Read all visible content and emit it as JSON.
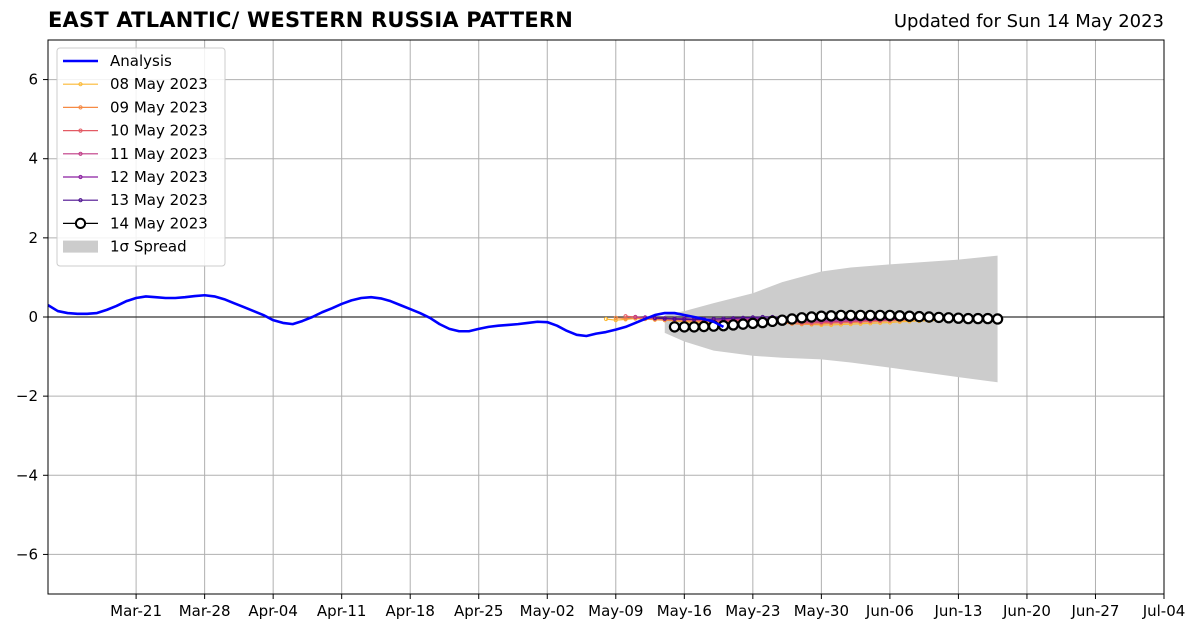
{
  "chart_data": {
    "type": "line",
    "title": "EAST ATLANTIC/ WESTERN RUSSIA PATTERN",
    "subtitle": "Updated for Sun 14 May 2023",
    "xlabel": "",
    "ylabel": "",
    "xlim": [
      "2023-03-12",
      "2023-07-04"
    ],
    "ylim": [
      -7,
      7
    ],
    "grid": true,
    "legend_position": "top-left",
    "x_ticks": [
      "2023-03-21",
      "2023-03-28",
      "2023-04-04",
      "2023-04-11",
      "2023-04-18",
      "2023-04-25",
      "2023-05-02",
      "2023-05-09",
      "2023-05-16",
      "2023-05-23",
      "2023-05-30",
      "2023-06-06",
      "2023-06-13",
      "2023-06-20",
      "2023-06-27",
      "2023-07-04"
    ],
    "x_tick_labels": [
      "Mar-21",
      "Mar-28",
      "Apr-04",
      "Apr-11",
      "Apr-18",
      "Apr-25",
      "May-02",
      "May-09",
      "May-16",
      "May-23",
      "May-30",
      "Jun-06",
      "Jun-13",
      "Jun-20",
      "Jun-27",
      "Jul-04"
    ],
    "y_ticks": [
      -6,
      -4,
      -2,
      0,
      2,
      4,
      6
    ],
    "y_tick_labels": [
      "−6",
      "−4",
      "−2",
      "0",
      "2",
      "4",
      "6"
    ],
    "analysis": {
      "name": "Analysis",
      "color": "#0000ff",
      "start": "2023-03-12",
      "values": [
        0.3,
        0.15,
        0.1,
        0.08,
        0.08,
        0.1,
        0.18,
        0.28,
        0.4,
        0.48,
        0.52,
        0.5,
        0.48,
        0.48,
        0.5,
        0.53,
        0.55,
        0.52,
        0.45,
        0.35,
        0.25,
        0.15,
        0.05,
        -0.08,
        -0.15,
        -0.18,
        -0.1,
        0.0,
        0.12,
        0.22,
        0.33,
        0.42,
        0.48,
        0.5,
        0.47,
        0.4,
        0.3,
        0.2,
        0.1,
        -0.02,
        -0.18,
        -0.3,
        -0.36,
        -0.36,
        -0.3,
        -0.25,
        -0.22,
        -0.2,
        -0.18,
        -0.15,
        -0.12,
        -0.13,
        -0.22,
        -0.35,
        -0.45,
        -0.48,
        -0.42,
        -0.38,
        -0.32,
        -0.25,
        -0.15,
        -0.05,
        0.05,
        0.1,
        0.1,
        0.05,
        0.0,
        -0.05,
        -0.12,
        -0.25
      ]
    },
    "spread": {
      "name": "1σ Spread",
      "color": "#cccccc",
      "x": [
        "2023-05-14",
        "2023-05-16",
        "2023-05-19",
        "2023-05-23",
        "2023-05-26",
        "2023-05-30",
        "2023-06-02",
        "2023-06-06",
        "2023-06-13",
        "2023-06-17"
      ],
      "upper": [
        0.05,
        0.15,
        0.35,
        0.6,
        0.88,
        1.15,
        1.25,
        1.33,
        1.45,
        1.55
      ],
      "lower": [
        -0.4,
        -0.62,
        -0.85,
        -0.98,
        -1.03,
        -1.07,
        -1.15,
        -1.28,
        -1.52,
        -1.65
      ]
    },
    "series": [
      {
        "name": "08 May 2023",
        "color": "#fcb934",
        "start": "2023-05-08",
        "values": [
          -0.05,
          -0.08,
          -0.06,
          -0.04,
          -0.05,
          -0.07,
          -0.08,
          -0.1,
          -0.12,
          -0.14,
          -0.15,
          -0.15,
          -0.14,
          -0.12,
          -0.1,
          -0.09,
          -0.1,
          -0.12,
          -0.14,
          -0.16,
          -0.18,
          -0.19,
          -0.2,
          -0.2,
          -0.19,
          -0.18,
          -0.17,
          -0.16,
          -0.15,
          -0.14,
          -0.12,
          -0.11,
          -0.1,
          -0.1,
          -0.08,
          -0.07
        ]
      },
      {
        "name": "09 May 2023",
        "color": "#f68a44",
        "start": "2023-05-09",
        "values": [
          -0.02,
          -0.04,
          -0.03,
          -0.05,
          -0.06,
          -0.08,
          -0.09,
          -0.1,
          -0.11,
          -0.12,
          -0.12,
          -0.11,
          -0.1,
          -0.09,
          -0.1,
          -0.12,
          -0.14,
          -0.16,
          -0.17,
          -0.18,
          -0.18,
          -0.17,
          -0.16,
          -0.15,
          -0.14,
          -0.13,
          -0.12,
          -0.11,
          -0.1,
          -0.09,
          -0.08,
          -0.07,
          -0.07,
          -0.06,
          -0.05
        ]
      },
      {
        "name": "10 May 2023",
        "color": "#e35a64",
        "start": "2023-05-10",
        "values": [
          0.02,
          0.0,
          -0.02,
          -0.04,
          -0.05,
          -0.06,
          -0.07,
          -0.08,
          -0.09,
          -0.1,
          -0.1,
          -0.09,
          -0.08,
          -0.08,
          -0.09,
          -0.11,
          -0.13,
          -0.14,
          -0.15,
          -0.15,
          -0.14,
          -0.14,
          -0.13,
          -0.12,
          -0.11,
          -0.1,
          -0.09,
          -0.08,
          -0.07,
          -0.06,
          -0.05,
          -0.05,
          -0.04,
          -0.04
        ]
      },
      {
        "name": "11 May 2023",
        "color": "#bf3984",
        "start": "2023-05-11",
        "values": [
          0.0,
          -0.02,
          -0.03,
          -0.04,
          -0.05,
          -0.06,
          -0.07,
          -0.07,
          -0.08,
          -0.08,
          -0.07,
          -0.06,
          -0.06,
          -0.07,
          -0.08,
          -0.1,
          -0.11,
          -0.12,
          -0.12,
          -0.12,
          -0.11,
          -0.11,
          -0.1,
          -0.09,
          -0.08,
          -0.08,
          -0.07,
          -0.06,
          -0.05,
          -0.05,
          -0.04,
          -0.04,
          -0.03
        ]
      },
      {
        "name": "12 May 2023",
        "color": "#8b1fa0",
        "start": "2023-05-12",
        "values": [
          -0.01,
          -0.02,
          -0.03,
          -0.04,
          -0.04,
          -0.05,
          -0.05,
          -0.05,
          -0.05,
          -0.04,
          -0.03,
          -0.03,
          -0.04,
          -0.05,
          -0.06,
          -0.07,
          -0.08,
          -0.08,
          -0.08,
          -0.08,
          -0.07,
          -0.07,
          -0.06,
          -0.06,
          -0.05,
          -0.05,
          -0.04,
          -0.04,
          -0.03,
          -0.03,
          -0.03,
          -0.02
        ]
      },
      {
        "name": "13 May 2023",
        "color": "#4b0f8f",
        "start": "2023-05-13",
        "values": [
          -0.03,
          -0.04,
          -0.05,
          -0.06,
          -0.06,
          -0.06,
          -0.05,
          -0.04,
          -0.03,
          -0.02,
          -0.01,
          0.0,
          0.0,
          -0.01,
          -0.02,
          -0.03,
          -0.04,
          -0.04,
          -0.04,
          -0.04,
          -0.03,
          -0.03,
          -0.02,
          -0.02,
          -0.02,
          -0.01,
          -0.01,
          -0.01,
          0.0,
          0.0,
          0.0
        ]
      },
      {
        "name": "14 May 2023",
        "color": "#000000",
        "start": "2023-05-15",
        "values": [
          -0.25,
          -0.25,
          -0.25,
          -0.24,
          -0.23,
          -0.22,
          -0.2,
          -0.18,
          -0.16,
          -0.14,
          -0.11,
          -0.08,
          -0.05,
          -0.02,
          0.0,
          0.02,
          0.03,
          0.04,
          0.04,
          0.04,
          0.04,
          0.04,
          0.04,
          0.03,
          0.02,
          0.01,
          0.0,
          -0.01,
          -0.02,
          -0.03,
          -0.04,
          -0.04,
          -0.04,
          -0.05
        ]
      }
    ],
    "legend": [
      {
        "label": "Analysis",
        "kind": "line",
        "color": "#0000ff"
      },
      {
        "label": "08 May 2023",
        "kind": "line-dot",
        "color": "#fcb934"
      },
      {
        "label": "09 May 2023",
        "kind": "line-dot",
        "color": "#f68a44"
      },
      {
        "label": "10 May 2023",
        "kind": "line-dot",
        "color": "#e35a64"
      },
      {
        "label": "11 May 2023",
        "kind": "line-dot",
        "color": "#bf3984"
      },
      {
        "label": "12 May 2023",
        "kind": "line-dot",
        "color": "#8b1fa0"
      },
      {
        "label": "13 May 2023",
        "kind": "line-dot",
        "color": "#4b0f8f"
      },
      {
        "label": "14 May 2023",
        "kind": "line-circle",
        "color": "#000000"
      },
      {
        "label": "1σ Spread",
        "kind": "patch",
        "color": "#cccccc"
      }
    ]
  }
}
